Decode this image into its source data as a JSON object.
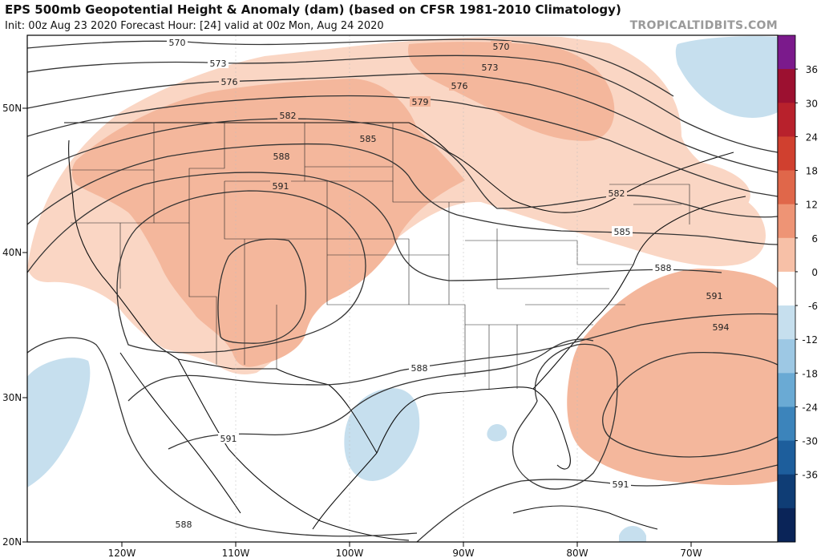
{
  "header": {
    "title": "EPS 500mb Geopotential Height & Anomaly (dam) (based on CFSR 1981-2010 Climatology)",
    "subtitle": "Init: 00z Aug 23 2020   Forecast Hour: [24]   valid at 00z Mon, Aug 24 2020",
    "brand": "TROPICALTIDBITS.COM"
  },
  "axes": {
    "lat_labels": [
      "50N",
      "40N",
      "30N",
      "20N"
    ],
    "lon_labels": [
      "120W",
      "110W",
      "100W",
      "90W",
      "80W",
      "70W"
    ]
  },
  "contour_labels": {
    "c570a": "570",
    "c570b": "570",
    "c573a": "573",
    "c573b": "573",
    "c576a": "576",
    "c576b": "576",
    "c579": "579",
    "c582a": "582",
    "c582b": "582",
    "c585a": "585",
    "c585b": "585",
    "c588a": "588",
    "c588b": "588",
    "c588c": "588",
    "c588d": "588",
    "c591a": "591",
    "c591b": "591",
    "c591c": "591",
    "c591d": "591",
    "c594": "594"
  },
  "colorbar": {
    "labels": [
      "36",
      "30",
      "24",
      "18",
      "12",
      "6",
      "0",
      "-6",
      "-12",
      "-18",
      "-24",
      "-30",
      "-36"
    ],
    "colors": [
      "#7b1a8c",
      "#9c1030",
      "#b8212c",
      "#d0402f",
      "#e0674a",
      "#ee9475",
      "#f7c0a7",
      "#ffffff",
      "#c6dfee",
      "#9dc8e4",
      "#6aaad4",
      "#3c84bb",
      "#1d5e9c",
      "#0f3d75",
      "#0a2458"
    ]
  },
  "colors": {
    "pos_anomaly_light": "#fad6c4",
    "pos_anomaly_mid": "#f4b79c",
    "neg_anomaly": "#c6dfee",
    "contour": "#333333",
    "border": "#111111"
  }
}
